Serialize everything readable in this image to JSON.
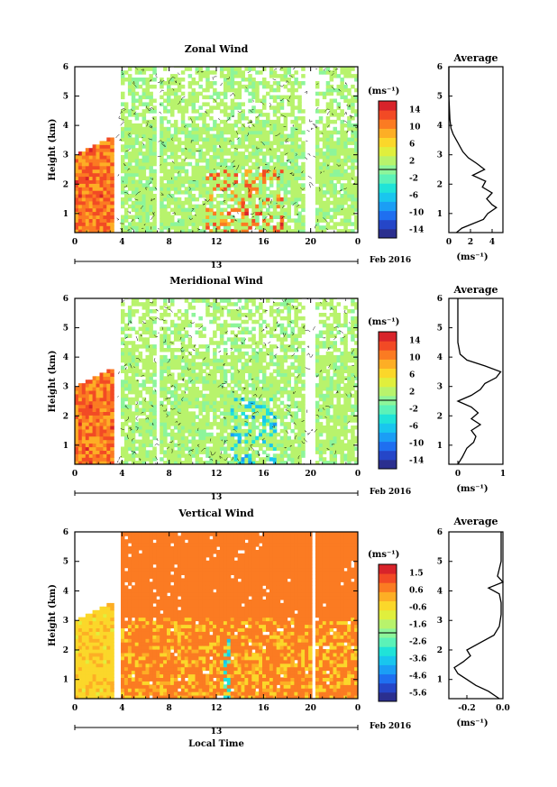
{
  "chart_data": [
    {
      "type": "heatmap",
      "title": "Zonal Wind",
      "ylabel": "Height (km)",
      "colorbar_label": "(ms⁻¹)",
      "colorbar_ticks": [
        "14",
        "10",
        "6",
        "2",
        "-2",
        "-6",
        "-10",
        "-14"
      ],
      "colorbar_range": [
        -16,
        16
      ],
      "xticks": [
        "0",
        "4",
        "8",
        "12",
        "16",
        "20",
        "0"
      ],
      "xlim": [
        0,
        24
      ],
      "ylim": [
        0.35,
        6
      ],
      "yticks": [
        "1",
        "2",
        "3",
        "4",
        "5",
        "6"
      ],
      "date_label": "13",
      "month_label": "Feb 2016",
      "average": {
        "title": "Average",
        "xlabel": "(ms⁻¹)",
        "xticks": [
          "0",
          "2",
          "4"
        ],
        "xlim": [
          0,
          5
        ],
        "profile": [
          [
            0.35,
            0.7
          ],
          [
            0.5,
            1.2
          ],
          [
            0.8,
            3.2
          ],
          [
            1.0,
            3.6
          ],
          [
            1.2,
            4.4
          ],
          [
            1.3,
            4.0
          ],
          [
            1.5,
            3.5
          ],
          [
            1.7,
            4.0
          ],
          [
            1.9,
            3.1
          ],
          [
            2.1,
            3.4
          ],
          [
            2.3,
            2.2
          ],
          [
            2.5,
            3.3
          ],
          [
            2.7,
            2.6
          ],
          [
            2.9,
            1.8
          ],
          [
            3.1,
            1.3
          ],
          [
            3.3,
            1.0
          ],
          [
            3.5,
            0.7
          ],
          [
            3.7,
            0.4
          ],
          [
            3.9,
            0.2
          ],
          [
            4.2,
            0.1
          ],
          [
            5.0,
            0.0
          ],
          [
            6.0,
            0.0
          ]
        ]
      }
    },
    {
      "type": "heatmap",
      "title": "Meridional Wind",
      "ylabel": "Height (km)",
      "colorbar_label": "(ms⁻¹)",
      "colorbar_ticks": [
        "14",
        "10",
        "6",
        "2",
        "-2",
        "-6",
        "-10",
        "-14"
      ],
      "colorbar_range": [
        -16,
        16
      ],
      "xticks": [
        "0",
        "4",
        "8",
        "12",
        "16",
        "20",
        "0"
      ],
      "xlim": [
        0,
        24
      ],
      "ylim": [
        0.35,
        6
      ],
      "yticks": [
        "1",
        "2",
        "3",
        "4",
        "5",
        "6"
      ],
      "date_label": "13",
      "month_label": "Feb 2016",
      "average": {
        "title": "Average",
        "xlabel": "(ms⁻¹)",
        "xticks": [
          "0",
          "1"
        ],
        "xlim": [
          -0.2,
          1
        ],
        "profile": [
          [
            0.35,
            0.0
          ],
          [
            0.6,
            0.1
          ],
          [
            0.9,
            0.2
          ],
          [
            1.1,
            0.35
          ],
          [
            1.3,
            0.4
          ],
          [
            1.5,
            0.3
          ],
          [
            1.7,
            0.5
          ],
          [
            1.9,
            0.3
          ],
          [
            2.1,
            0.45
          ],
          [
            2.3,
            0.3
          ],
          [
            2.5,
            0.0
          ],
          [
            2.7,
            0.3
          ],
          [
            2.9,
            0.5
          ],
          [
            3.1,
            0.6
          ],
          [
            3.3,
            0.85
          ],
          [
            3.5,
            0.95
          ],
          [
            3.7,
            0.6
          ],
          [
            3.9,
            0.2
          ],
          [
            4.1,
            0.05
          ],
          [
            4.5,
            0.0
          ],
          [
            6.0,
            0.0
          ]
        ]
      }
    },
    {
      "type": "heatmap",
      "title": "Vertical Wind",
      "ylabel": "Height (km)",
      "xlabel": "Local Time",
      "colorbar_label": "(ms⁻¹)",
      "colorbar_ticks": [
        "1.5",
        "0.6",
        "-0.6",
        "-1.6",
        "-2.6",
        "-3.6",
        "-4.6",
        "-5.6"
      ],
      "colorbar_range": [
        -6,
        2
      ],
      "xticks": [
        "0",
        "4",
        "8",
        "12",
        "16",
        "20",
        "0"
      ],
      "xlim": [
        0,
        24
      ],
      "ylim": [
        0.35,
        6
      ],
      "yticks": [
        "1",
        "2",
        "3",
        "4",
        "5",
        "6"
      ],
      "date_label": "13",
      "month_label": "Feb 2016",
      "average": {
        "title": "Average",
        "xlabel": "(ms⁻¹)",
        "xticks": [
          "-0.2",
          "0.0"
        ],
        "xlim": [
          -0.3,
          0.0
        ],
        "profile": [
          [
            0.35,
            -0.02
          ],
          [
            0.6,
            -0.08
          ],
          [
            0.8,
            -0.15
          ],
          [
            1.0,
            -0.2
          ],
          [
            1.2,
            -0.25
          ],
          [
            1.4,
            -0.27
          ],
          [
            1.6,
            -0.22
          ],
          [
            1.8,
            -0.18
          ],
          [
            2.0,
            -0.2
          ],
          [
            2.2,
            -0.14
          ],
          [
            2.5,
            -0.05
          ],
          [
            2.8,
            -0.02
          ],
          [
            3.2,
            -0.01
          ],
          [
            3.6,
            -0.01
          ],
          [
            3.9,
            -0.02
          ],
          [
            4.1,
            -0.08
          ],
          [
            4.3,
            0.0
          ],
          [
            4.5,
            -0.03
          ],
          [
            5.0,
            -0.01
          ],
          [
            6.0,
            -0.01
          ]
        ]
      }
    }
  ]
}
